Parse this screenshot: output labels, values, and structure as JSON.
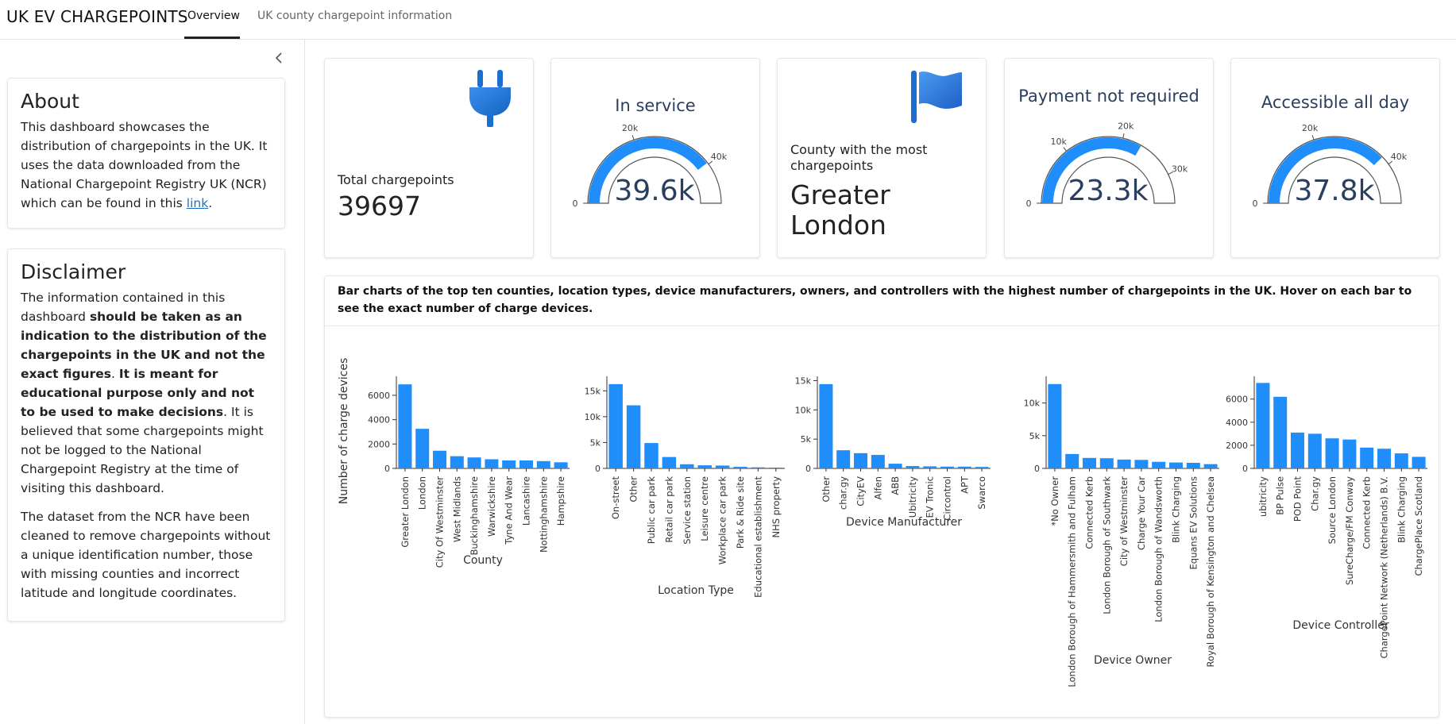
{
  "nav": {
    "brand": "UK EV CHARGEPOINTS",
    "tabs": [
      {
        "label": "Overview",
        "active": true
      },
      {
        "label": "UK county chargepoint information",
        "active": false
      }
    ]
  },
  "sidebar": {
    "collapse_icon": "chevron-left-icon",
    "about": {
      "title": "About",
      "text": "This dashboard showcases the distribution of chargepoints in the UK. It uses the data downloaded from the National Chargepoint Registry UK (NCR) which can be found in this ",
      "link_text": "link",
      "text_end": "."
    },
    "disclaimer": {
      "title": "Disclaimer",
      "p1_a": "The information contained in this dashboard ",
      "p1_b": "should be taken as an indication to the distribution of the chargepoints in the UK and not the exact figures",
      "p1_c": ". ",
      "p1_d": "It is meant for educational purpose only and not to be used to make decisions",
      "p1_e": ". It is believed that some chargepoints might not be logged to the National Chargepoint Registry at the time of visiting this dashboard.",
      "p2": "The dataset from the NCR have been cleaned to remove chargepoints without a unique identification number, those with missing counties and incorrect latitude and longitude coordinates."
    }
  },
  "kpis": {
    "total": {
      "label": "Total chargepoints",
      "value": "39697",
      "icon": "plug-icon"
    },
    "in_service": {
      "title": "In service",
      "value": "39.6k",
      "raw": 39600,
      "max": 50000,
      "ticks": [
        "0",
        "20k",
        "40k"
      ]
    },
    "county": {
      "label": "County with the most chargepoints",
      "value": "Greater London",
      "icon": "flag-icon"
    },
    "payment": {
      "title": "Payment not required",
      "value": "23.3k",
      "raw": 23300,
      "max": 35000,
      "ticks": [
        "0",
        "10k",
        "20k",
        "30k"
      ]
    },
    "accessible": {
      "title": "Accessible all day",
      "value": "37.8k",
      "raw": 37800,
      "max": 50000,
      "ticks": [
        "0",
        "20k",
        "40k"
      ]
    }
  },
  "colors": {
    "bar": "#1f8efa",
    "gauge_text": "#2a3f5f"
  },
  "charts": {
    "description": "Bar charts of the top ten counties, location types, device manufacturers, owners, and controllers with the highest number of chargepoints in the UK. Hover on each bar to see the exact number of charge devices.",
    "ylabel": "Number of charge devices"
  },
  "chart_data": [
    {
      "type": "bar",
      "xlabel": "County",
      "ylabel": "Number of charge devices",
      "categories": [
        "Greater London",
        "London",
        "City Of Westminster",
        "West Midlands",
        "Buckinghamshire",
        "Warwickshire",
        "Tyne And Wear",
        "Lancashire",
        "Nottinghamshire",
        "Hampshire"
      ],
      "values": [
        6900,
        3250,
        1450,
        1000,
        900,
        750,
        650,
        650,
        600,
        500
      ],
      "ticks": [
        0,
        2000,
        4000,
        6000
      ],
      "tick_labels": [
        "0",
        "2000",
        "4000",
        "6000"
      ],
      "ylim": [
        0,
        7300
      ]
    },
    {
      "type": "bar",
      "xlabel": "Location Type",
      "categories": [
        "On-street",
        "Other",
        "Public car park",
        "Retail car park",
        "Service station",
        "Leisure centre",
        "Workplace car park",
        "Park & Ride site",
        "Educational establishment",
        "NHS property"
      ],
      "values": [
        16300,
        12200,
        4900,
        2200,
        800,
        600,
        550,
        300,
        200,
        150
      ],
      "ticks": [
        0,
        5000,
        10000,
        15000
      ],
      "tick_labels": [
        "0",
        "5k",
        "10k",
        "15k"
      ],
      "ylim": [
        0,
        17200
      ]
    },
    {
      "type": "bar",
      "xlabel": "Device Manufacturer",
      "categories": [
        "Other",
        "char.gy",
        "CityEV",
        "Alfen",
        "ABB",
        "Ubitricity",
        "EV Tronic",
        "Circontrol",
        "APT",
        "Swarco"
      ],
      "values": [
        14400,
        3100,
        2600,
        2300,
        800,
        400,
        350,
        300,
        300,
        250
      ],
      "ticks": [
        0,
        5000,
        10000,
        15000
      ],
      "tick_labels": [
        "0",
        "5k",
        "10k",
        "15k"
      ],
      "ylim": [
        0,
        15200
      ]
    },
    {
      "type": "bar",
      "xlabel": "Device Owner",
      "categories": [
        "*No Owner",
        "London Borough of Hammersmith and Fulham",
        "Connected Kerb",
        "London Borough of Southwark",
        "City of Westminster",
        "Charge Your Car",
        "London Borough of Wandsworth",
        "Blink Charging",
        "Equans EV Solutions",
        "Royal Borough of Kensington and Chelsea"
      ],
      "values": [
        12900,
        2200,
        1600,
        1550,
        1350,
        1300,
        1000,
        900,
        850,
        650
      ],
      "ticks": [
        0,
        5000,
        10000
      ],
      "tick_labels": [
        "0",
        "5k",
        "10k"
      ],
      "ylim": [
        0,
        13600
      ]
    },
    {
      "type": "bar",
      "xlabel": "Device Controller",
      "categories": [
        "ubitricity",
        "BP Pulse",
        "POD Point",
        "Char.gy",
        "Source London",
        "SureCharge/FM Conway",
        "Connected Kerb",
        "ChargePoint Network (Netherlands) B.V.",
        "Blink Charging",
        "ChargePlace Scotland"
      ],
      "values": [
        7400,
        6200,
        3100,
        3000,
        2600,
        2500,
        1800,
        1700,
        1300,
        1000
      ],
      "ticks": [
        0,
        2000,
        4000,
        6000
      ],
      "tick_labels": [
        "0",
        "2000",
        "4000",
        "6000"
      ],
      "ylim": [
        0,
        7700
      ]
    }
  ]
}
